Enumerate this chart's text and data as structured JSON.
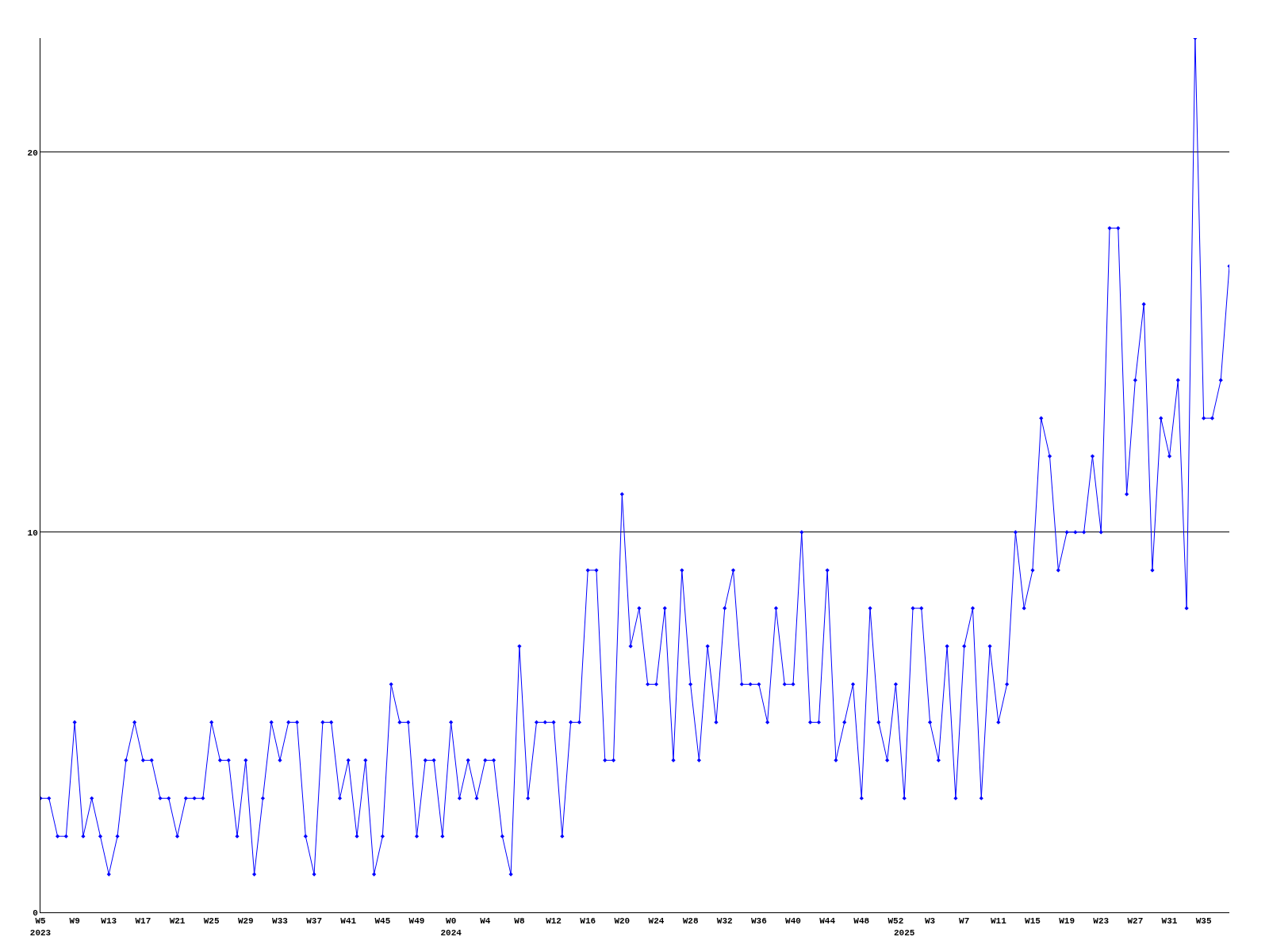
{
  "chart_data": {
    "type": "line",
    "categories": [
      "W5\n2023",
      null,
      null,
      null,
      "W9",
      null,
      null,
      null,
      "W13",
      null,
      null,
      null,
      "W17",
      null,
      null,
      null,
      "W21",
      null,
      null,
      null,
      "W25",
      null,
      null,
      null,
      "W29",
      null,
      null,
      null,
      "W33",
      null,
      null,
      null,
      "W37",
      null,
      null,
      null,
      "W41",
      null,
      null,
      null,
      "W45",
      null,
      null,
      null,
      "W49",
      null,
      null,
      null,
      "W0\n2024",
      null,
      null,
      null,
      "W4",
      null,
      null,
      null,
      "W8",
      null,
      null,
      null,
      "W12",
      null,
      null,
      null,
      "W16",
      null,
      null,
      null,
      "W20",
      null,
      null,
      null,
      "W24",
      null,
      null,
      null,
      "W28",
      null,
      null,
      null,
      "W32",
      null,
      null,
      null,
      "W36",
      null,
      null,
      null,
      "W40",
      null,
      null,
      null,
      "W44",
      null,
      null,
      null,
      "W48",
      null,
      null,
      null,
      "W52",
      "\n2025",
      null,
      null,
      "W3",
      null,
      null,
      null,
      "W7",
      null,
      null,
      null,
      "W11",
      null,
      null,
      null,
      "W15",
      null,
      null,
      null,
      "W19",
      null,
      null,
      null,
      "W23",
      null,
      null,
      null,
      "W27",
      null,
      null,
      null,
      "W31",
      null,
      null,
      null,
      "W35",
      null,
      null,
      null
    ],
    "series": [
      {
        "color": "#0000ff",
        "values": [
          3,
          3,
          2,
          2,
          5,
          2,
          3,
          2,
          1,
          2,
          4,
          5,
          4,
          4,
          3,
          3,
          2,
          3,
          3,
          3,
          5,
          4,
          4,
          2,
          4,
          1,
          3,
          5,
          4,
          5,
          5,
          2,
          1,
          5,
          5,
          3,
          4,
          2,
          4,
          1,
          2,
          6,
          5,
          5,
          2,
          4,
          4,
          2,
          5,
          3,
          4,
          3,
          4,
          4,
          2,
          1,
          7,
          3,
          5,
          5,
          5,
          2,
          5,
          5,
          9,
          9,
          4,
          4,
          11,
          7,
          8,
          6,
          6,
          8,
          4,
          9,
          6,
          4,
          7,
          5,
          8,
          9,
          6,
          6,
          6,
          5,
          8,
          6,
          6,
          10,
          5,
          5,
          9,
          4,
          5,
          6,
          3,
          8,
          5,
          4,
          6,
          3,
          8,
          8,
          5,
          4,
          7,
          3,
          7,
          8,
          3,
          7,
          5,
          6,
          10,
          8,
          9,
          13,
          12,
          9,
          10,
          10,
          10,
          12,
          10,
          18,
          18,
          11,
          14,
          16,
          9,
          13,
          12,
          14,
          8,
          23,
          13,
          13,
          14,
          17
        ]
      }
    ],
    "ylim": [
      0,
      23
    ],
    "yticks": [
      0,
      10,
      20
    ],
    "grid": "y",
    "marker": "diamond",
    "line_style": "solid"
  }
}
